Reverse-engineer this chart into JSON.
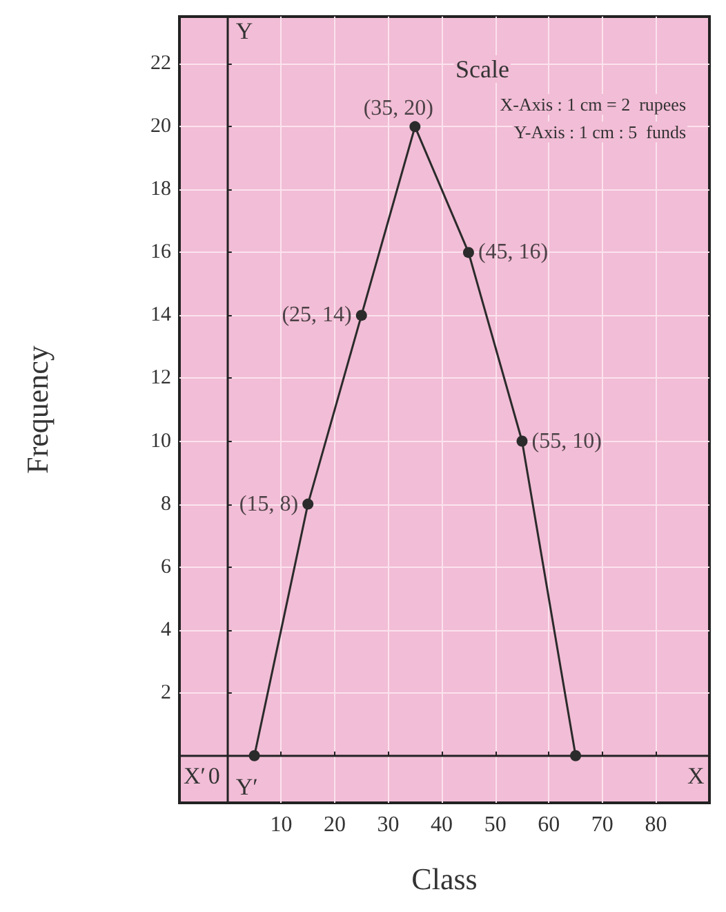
{
  "chart_data": {
    "type": "line",
    "xlabel": "Class",
    "ylabel": "Frequency",
    "x": [
      5,
      15,
      25,
      35,
      45,
      55,
      65
    ],
    "series": [
      {
        "color": "#2b2b2b",
        "values": [
          0,
          8,
          14,
          20,
          16,
          10,
          0
        ]
      }
    ],
    "xlim": [
      -9,
      90
    ],
    "xticks": [
      10,
      20,
      30,
      40,
      50,
      60,
      70,
      80
    ],
    "ylim": [
      -1.5,
      23.5
    ],
    "yticks": [
      2,
      4,
      6,
      8,
      10,
      12,
      14,
      16,
      18,
      20,
      22
    ],
    "grid": true,
    "marker": "circle",
    "line_style": "solid",
    "annotations": [
      "Scale",
      "X-Axis : 1 cm = 2  rupees",
      "Y-Axis : 1 cm : 5  funds",
      {
        "text": "(15, 8)",
        "x": 15,
        "y": 8
      },
      {
        "text": "(25, 14)",
        "x": 25,
        "y": 14
      },
      {
        "text": "(35, 20)",
        "x": 35,
        "y": 20
      },
      {
        "text": "(45, 16)",
        "x": 45,
        "y": 16
      },
      {
        "text": "(55, 10)",
        "x": 55,
        "y": 10
      },
      "X′",
      "0",
      "X",
      "Y",
      "Y′"
    ]
  }
}
